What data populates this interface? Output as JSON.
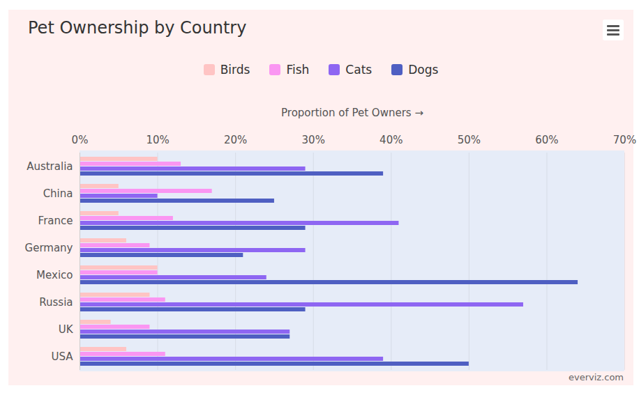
{
  "chart_data": {
    "type": "bar",
    "orientation": "horizontal",
    "title": "Pet Ownership by Country",
    "x_label": "Proportion of Pet Owners",
    "source": "everviz.com",
    "categories": [
      "Australia",
      "China",
      "France",
      "Germany",
      "Mexico",
      "Russia",
      "UK",
      "USA"
    ],
    "series": [
      {
        "name": "Birds",
        "color": "#ffc4c4",
        "values": [
          10,
          5,
          5,
          6,
          10,
          9,
          4,
          6
        ]
      },
      {
        "name": "Fish",
        "color": "#fa96f2",
        "values": [
          13,
          17,
          12,
          9,
          10,
          11,
          9,
          11
        ]
      },
      {
        "name": "Cats",
        "color": "#8e66f2",
        "values": [
          29,
          10,
          41,
          29,
          24,
          57,
          27,
          39
        ]
      },
      {
        "name": "Dogs",
        "color": "#4f5fc2",
        "values": [
          39,
          25,
          29,
          21,
          64,
          29,
          27,
          50
        ]
      }
    ],
    "xlim": [
      0,
      70
    ],
    "xticks": [
      {
        "value": 0,
        "label": "0%"
      },
      {
        "value": 10,
        "label": "10%"
      },
      {
        "value": 20,
        "label": "20%"
      },
      {
        "value": 30,
        "label": "30%"
      },
      {
        "value": 40,
        "label": "40%"
      },
      {
        "value": 50,
        "label": "50%"
      },
      {
        "value": 60,
        "label": "60%"
      },
      {
        "value": 70,
        "label": "70%"
      }
    ],
    "grid": true,
    "legend": "top"
  }
}
